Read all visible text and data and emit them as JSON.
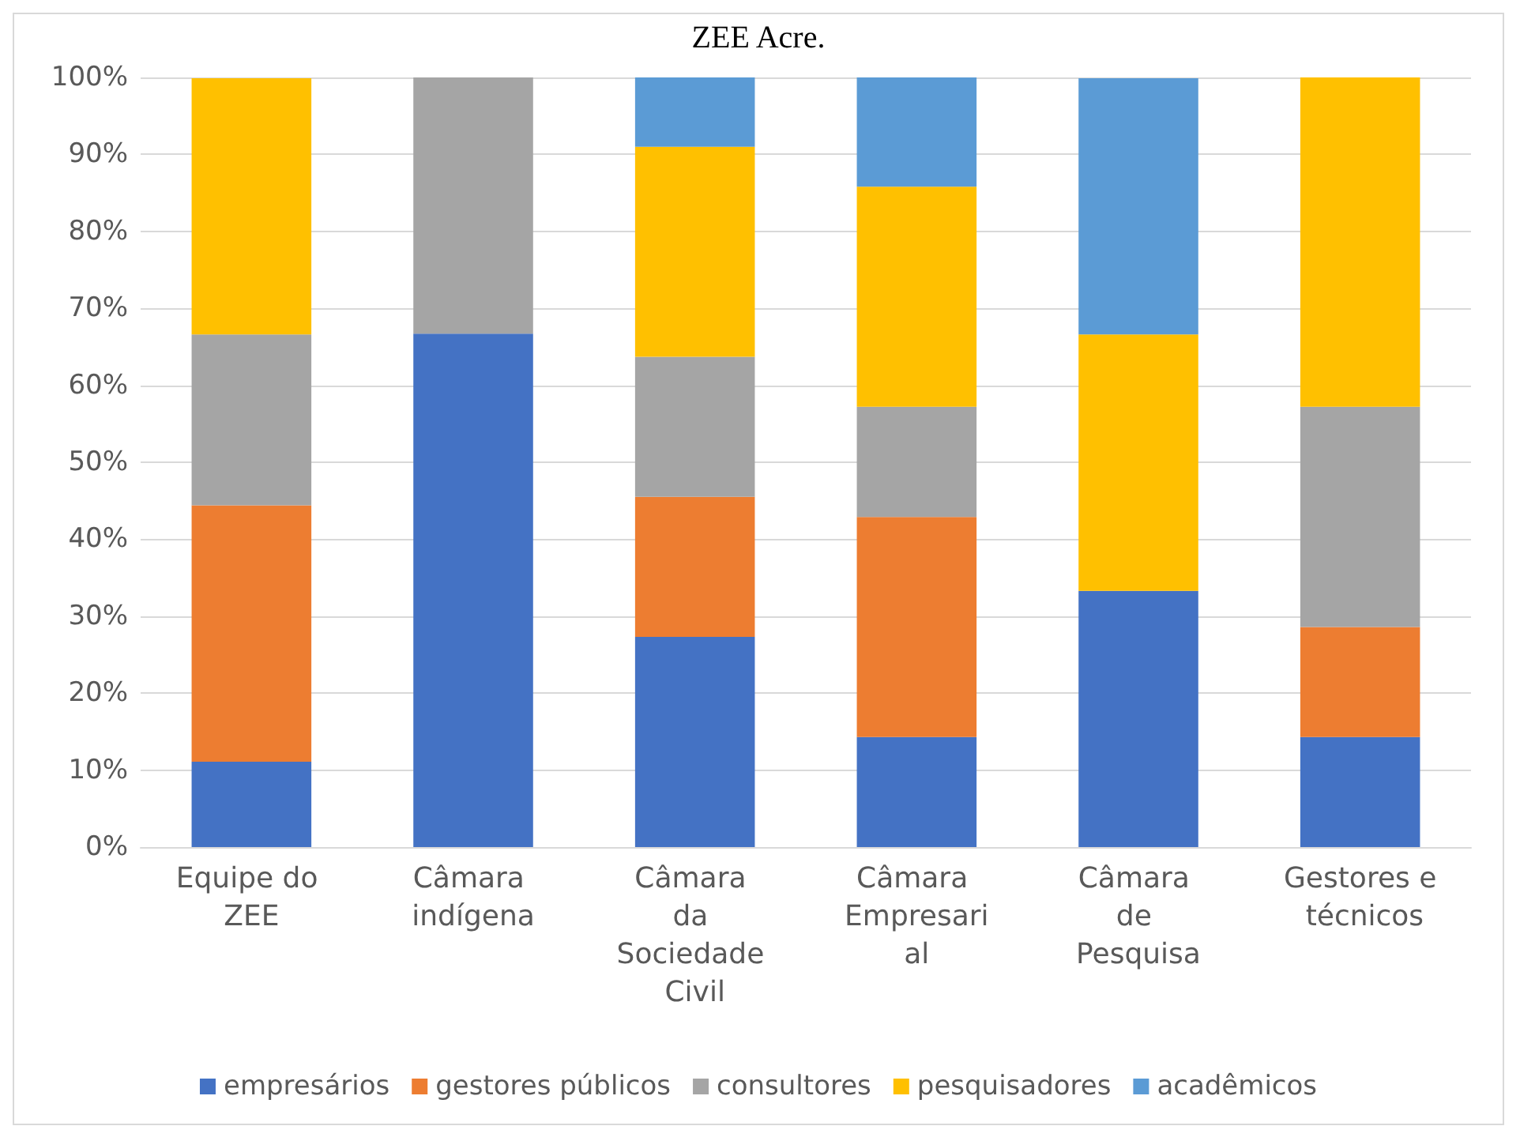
{
  "chart_data": {
    "type": "bar",
    "stacked": true,
    "title": "ZEE Acre.",
    "categories": [
      "Equipe do ZEE",
      "Câmara indígena",
      "Câmara da Sociedade Civil",
      "Câmara Empresarial",
      "Câmara de Pesquisa",
      "Gestores e técnicos"
    ],
    "series": [
      {
        "name": "empresários",
        "color": "#4472c4",
        "values": [
          11.1,
          66.7,
          27.3,
          14.3,
          33.3,
          14.3
        ]
      },
      {
        "name": "gestores públicos",
        "color": "#ed7d31",
        "values": [
          33.3,
          0,
          18.2,
          28.6,
          0,
          14.3
        ]
      },
      {
        "name": "consultores",
        "color": "#a5a5a5",
        "values": [
          22.2,
          33.3,
          18.2,
          14.3,
          0,
          28.6
        ]
      },
      {
        "name": "pesquisadores",
        "color": "#ffc000",
        "values": [
          33.3,
          0,
          27.3,
          28.6,
          33.3,
          42.9
        ]
      },
      {
        "name": "acadêmicos",
        "color": "#5b9bd5",
        "values": [
          0,
          0,
          9.1,
          14.3,
          33.3,
          0
        ]
      }
    ],
    "ylim": [
      0,
      100
    ],
    "yticks": [
      {
        "value": 0,
        "label": "0%"
      },
      {
        "value": 10,
        "label": "10%"
      },
      {
        "value": 20,
        "label": "20%"
      },
      {
        "value": 30,
        "label": "30%"
      },
      {
        "value": 40,
        "label": "40%"
      },
      {
        "value": 50,
        "label": "50%"
      },
      {
        "value": 60,
        "label": "60%"
      },
      {
        "value": 70,
        "label": "70%"
      },
      {
        "value": 80,
        "label": "80%"
      },
      {
        "value": 90,
        "label": "90%"
      },
      {
        "value": 100,
        "label": "100%"
      }
    ],
    "grid": "y",
    "legend": "bottom"
  }
}
